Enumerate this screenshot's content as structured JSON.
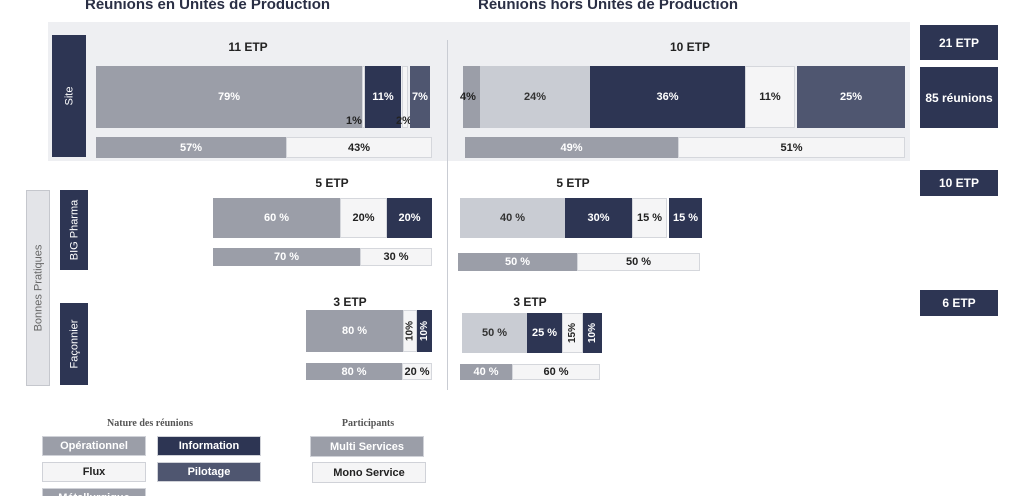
{
  "headings": {
    "left": "Réunions en Unités de Production",
    "right": "Réunions hors Unités de Production"
  },
  "side_label": "Bonnes Pratiques",
  "rows": [
    {
      "label": "Site",
      "left": {
        "etp": "11 ETP",
        "nature": [
          "79%",
          "1%",
          "11%",
          "2%",
          "7%"
        ],
        "participants": [
          "57%",
          "43%"
        ]
      },
      "right": {
        "etp": "10 ETP",
        "nature": [
          "4%",
          "24%",
          "36%",
          "11%",
          "25%"
        ],
        "participants": [
          "49%",
          "51%"
        ]
      },
      "totals": [
        "21 ETP",
        "85 réunions"
      ]
    },
    {
      "label": "BIG Pharma",
      "left": {
        "etp": "5 ETP",
        "nature": [
          "60 %",
          "20%",
          "20%"
        ],
        "participants": [
          "70 %",
          "30 %"
        ]
      },
      "right": {
        "etp": "5 ETP",
        "nature": [
          "40 %",
          "30%",
          "15 %",
          "15 %"
        ],
        "participants": [
          "50 %",
          "50 %"
        ]
      },
      "totals": [
        "10 ETP"
      ]
    },
    {
      "label": "Façonnier",
      "left": {
        "etp": "3 ETP",
        "nature": [
          "80 %",
          "10%",
          "10%"
        ],
        "participants": [
          "80 %",
          "20 %"
        ]
      },
      "right": {
        "etp": "3 ETP",
        "nature": [
          "50 %",
          "25 %",
          "15%",
          "10%"
        ],
        "participants": [
          "40 %",
          "60 %"
        ]
      },
      "totals": [
        "6 ETP"
      ]
    }
  ],
  "legend": {
    "nature_title": "Nature des réunions",
    "nature": [
      "Opérationnel",
      "Information",
      "Flux",
      "Pilotage",
      "Métallurgique"
    ],
    "participants_title": "Participants",
    "participants": [
      "Multi Services",
      "Mono Service"
    ]
  }
}
